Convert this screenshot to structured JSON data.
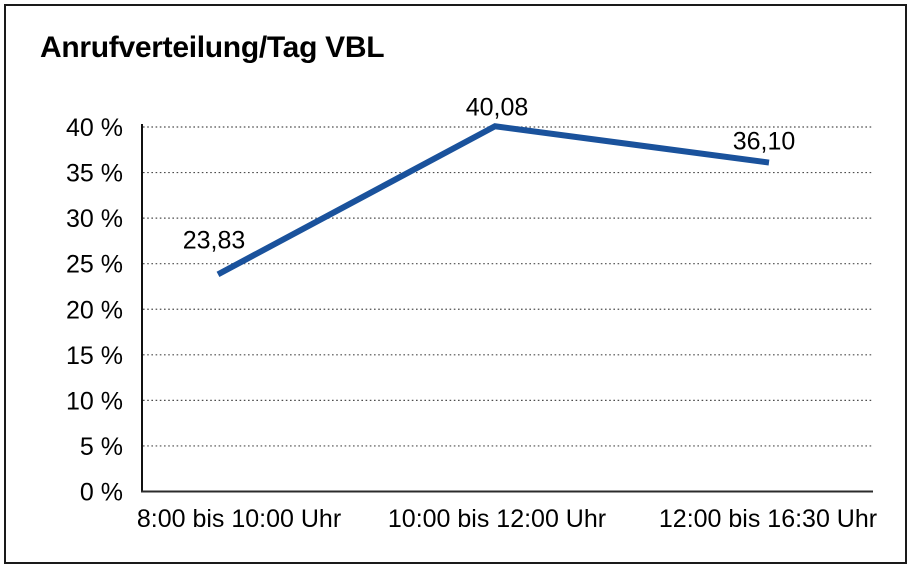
{
  "window": {
    "background": "#ffffff",
    "border_color": "#1a1a1a"
  },
  "chart_data": {
    "type": "line",
    "title": "Anrufverteilung/Tag VBL",
    "categories": [
      "8:00 bis 10:00 Uhr",
      "10:00 bis 12:00 Uhr",
      "12:00 bis 16:30 Uhr"
    ],
    "values": [
      23.83,
      40.08,
      36.1
    ],
    "value_labels": [
      "23,83",
      "40,08",
      "36,10"
    ],
    "xlabel": "",
    "ylabel": "",
    "ylim": [
      0,
      40
    ],
    "ytick_step": 5,
    "ytick_labels": [
      "0 %",
      "5 %",
      "10 %",
      "15 %",
      "20 %",
      "25 %",
      "30 %",
      "35 %",
      "40 %"
    ],
    "grid": "horizontal-dotted",
    "legend": "none",
    "line_color": "#1a529c",
    "axis_color": "#2b2b2b",
    "gridline_color": "#4d4d4d",
    "text_color": "#000000"
  }
}
